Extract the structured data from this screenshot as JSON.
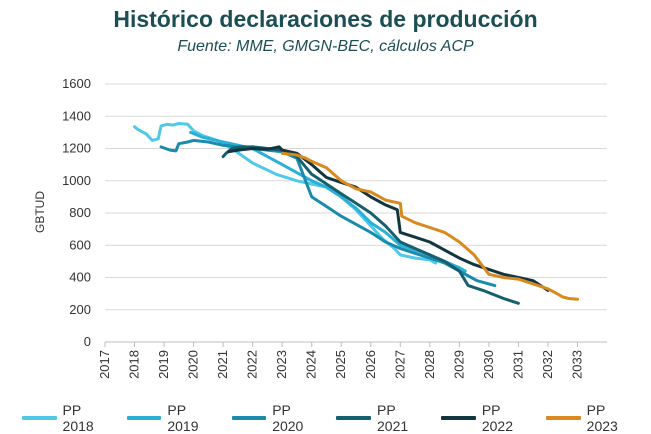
{
  "chart_data": {
    "type": "line",
    "title": "Histórico declaraciones de producción",
    "subtitle": "Fuente: MME, GMGN-BEC, cálculos ACP",
    "xlabel": "",
    "ylabel": "GBTUD",
    "xlim": [
      2017,
      2034
    ],
    "ylim": [
      0,
      1600
    ],
    "x_ticks": [
      "2017",
      "2018",
      "2019",
      "2020",
      "2021",
      "2022",
      "2023",
      "2024",
      "2025",
      "2026",
      "2027",
      "2028",
      "2029",
      "2030",
      "2031",
      "2032",
      "2033"
    ],
    "y_ticks": [
      "0",
      "200",
      "400",
      "600",
      "800",
      "1000",
      "1200",
      "1400",
      "1600"
    ],
    "grid": "horizontal",
    "legend_position": "bottom",
    "series": [
      {
        "name": "PP 2018",
        "color": "#4fc8ea",
        "points": [
          [
            2018.0,
            1335
          ],
          [
            2018.1,
            1320
          ],
          [
            2018.4,
            1290
          ],
          [
            2018.6,
            1250
          ],
          [
            2018.8,
            1260
          ],
          [
            2018.9,
            1340
          ],
          [
            2019.1,
            1350
          ],
          [
            2019.3,
            1345
          ],
          [
            2019.5,
            1355
          ],
          [
            2019.8,
            1350
          ],
          [
            2020.0,
            1310
          ],
          [
            2020.3,
            1280
          ],
          [
            2020.8,
            1250
          ],
          [
            2021.3,
            1200
          ],
          [
            2022.0,
            1110
          ],
          [
            2022.8,
            1040
          ],
          [
            2023.5,
            1000
          ],
          [
            2024.0,
            980
          ],
          [
            2024.5,
            960
          ],
          [
            2025.0,
            900
          ],
          [
            2025.5,
            820
          ],
          [
            2026.0,
            720
          ],
          [
            2026.4,
            640
          ],
          [
            2026.8,
            580
          ],
          [
            2027.0,
            540
          ],
          [
            2027.5,
            520
          ],
          [
            2028.0,
            510
          ],
          [
            2028.2,
            490
          ]
        ]
      },
      {
        "name": "PP 2019",
        "color": "#2ab0d6",
        "points": [
          [
            2019.9,
            1300
          ],
          [
            2020.3,
            1270
          ],
          [
            2021.0,
            1240
          ],
          [
            2022.0,
            1200
          ],
          [
            2022.5,
            1150
          ],
          [
            2023.0,
            1100
          ],
          [
            2023.5,
            1050
          ],
          [
            2024.0,
            1000
          ],
          [
            2024.5,
            960
          ],
          [
            2025.0,
            900
          ],
          [
            2025.5,
            830
          ],
          [
            2026.0,
            740
          ],
          [
            2026.5,
            680
          ],
          [
            2027.0,
            600
          ],
          [
            2027.5,
            570
          ],
          [
            2028.0,
            540
          ],
          [
            2028.5,
            500
          ],
          [
            2029.0,
            460
          ],
          [
            2029.2,
            440
          ]
        ]
      },
      {
        "name": "PP 2020",
        "color": "#1a8aad",
        "points": [
          [
            2018.9,
            1210
          ],
          [
            2019.2,
            1190
          ],
          [
            2019.4,
            1185
          ],
          [
            2019.5,
            1230
          ],
          [
            2019.8,
            1240
          ],
          [
            2020.0,
            1250
          ],
          [
            2020.5,
            1240
          ],
          [
            2021.0,
            1220
          ],
          [
            2021.5,
            1210
          ],
          [
            2022.0,
            1200
          ],
          [
            2022.5,
            1190
          ],
          [
            2023.0,
            1180
          ],
          [
            2023.5,
            1140
          ],
          [
            2024.0,
            900
          ],
          [
            2024.5,
            840
          ],
          [
            2025.0,
            780
          ],
          [
            2025.5,
            730
          ],
          [
            2026.0,
            680
          ],
          [
            2026.5,
            620
          ],
          [
            2027.0,
            580
          ],
          [
            2027.5,
            550
          ],
          [
            2028.0,
            520
          ],
          [
            2028.5,
            490
          ],
          [
            2029.0,
            440
          ],
          [
            2029.4,
            400
          ],
          [
            2029.6,
            380
          ],
          [
            2030.0,
            360
          ],
          [
            2030.2,
            350
          ]
        ]
      },
      {
        "name": "PP 2021",
        "color": "#155f6e",
        "points": [
          [
            2021.0,
            1150
          ],
          [
            2021.1,
            1170
          ],
          [
            2021.3,
            1200
          ],
          [
            2021.6,
            1210
          ],
          [
            2022.0,
            1210
          ],
          [
            2022.5,
            1200
          ],
          [
            2023.0,
            1190
          ],
          [
            2023.5,
            1150
          ],
          [
            2024.0,
            1040
          ],
          [
            2024.5,
            980
          ],
          [
            2025.0,
            920
          ],
          [
            2025.5,
            860
          ],
          [
            2026.0,
            800
          ],
          [
            2026.5,
            720
          ],
          [
            2027.0,
            620
          ],
          [
            2027.5,
            580
          ],
          [
            2028.0,
            540
          ],
          [
            2028.5,
            500
          ],
          [
            2029.0,
            440
          ],
          [
            2029.3,
            350
          ],
          [
            2029.8,
            320
          ],
          [
            2030.5,
            270
          ],
          [
            2031.0,
            240
          ]
        ]
      },
      {
        "name": "PP 2022",
        "color": "#12363f",
        "points": [
          [
            2021.2,
            1180
          ],
          [
            2021.5,
            1190
          ],
          [
            2022.0,
            1200
          ],
          [
            2022.5,
            1195
          ],
          [
            2022.9,
            1210
          ],
          [
            2023.0,
            1190
          ],
          [
            2023.5,
            1170
          ],
          [
            2024.0,
            1100
          ],
          [
            2024.5,
            1020
          ],
          [
            2025.0,
            990
          ],
          [
            2025.5,
            960
          ],
          [
            2026.0,
            900
          ],
          [
            2026.5,
            850
          ],
          [
            2026.9,
            820
          ],
          [
            2027.0,
            680
          ],
          [
            2027.5,
            650
          ],
          [
            2028.0,
            620
          ],
          [
            2028.5,
            570
          ],
          [
            2029.0,
            520
          ],
          [
            2029.5,
            480
          ],
          [
            2030.0,
            450
          ],
          [
            2030.5,
            420
          ],
          [
            2031.0,
            400
          ],
          [
            2031.5,
            380
          ],
          [
            2032.0,
            320
          ]
        ]
      },
      {
        "name": "PP 2023",
        "color": "#d9891e",
        "points": [
          [
            2023.0,
            1170
          ],
          [
            2023.5,
            1160
          ],
          [
            2023.8,
            1140
          ],
          [
            2024.0,
            1120
          ],
          [
            2024.5,
            1080
          ],
          [
            2025.0,
            1000
          ],
          [
            2025.5,
            950
          ],
          [
            2026.0,
            930
          ],
          [
            2026.5,
            880
          ],
          [
            2027.0,
            860
          ],
          [
            2027.05,
            780
          ],
          [
            2027.5,
            740
          ],
          [
            2028.0,
            710
          ],
          [
            2028.5,
            680
          ],
          [
            2029.0,
            620
          ],
          [
            2029.5,
            540
          ],
          [
            2030.0,
            420
          ],
          [
            2030.5,
            400
          ],
          [
            2031.0,
            390
          ],
          [
            2031.5,
            360
          ],
          [
            2032.0,
            330
          ],
          [
            2032.3,
            300
          ],
          [
            2032.5,
            280
          ],
          [
            2032.7,
            270
          ],
          [
            2033.0,
            265
          ]
        ]
      }
    ]
  }
}
